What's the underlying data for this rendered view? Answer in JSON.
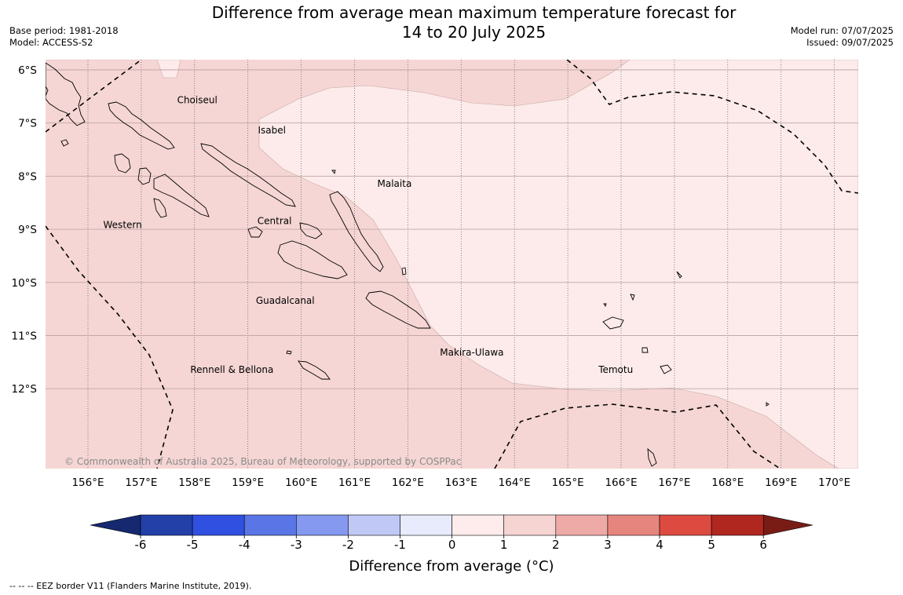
{
  "title_line1": "Difference from average mean maximum temperature forecast for",
  "title_line2": "14 to 20 July 2025",
  "base_period": "Base period: 1981-2018",
  "model": "Model: ACCESS-S2",
  "model_run": "Model run: 07/07/2025",
  "issued": "Issued: 09/07/2025",
  "lat_labels": [
    "6°S",
    "7°S",
    "8°S",
    "9°S",
    "10°S",
    "11°S",
    "12°S"
  ],
  "lon_labels": [
    "156°E",
    "157°E",
    "158°E",
    "159°E",
    "160°E",
    "161°E",
    "162°E",
    "163°E",
    "164°E",
    "165°E",
    "166°E",
    "167°E",
    "168°E",
    "169°E",
    "170°E"
  ],
  "regions": [
    {
      "name": "Choiseul",
      "lon": 158.05,
      "lat": -6.63
    },
    {
      "name": "Isabel",
      "lon": 159.45,
      "lat": -7.2
    },
    {
      "name": "Malaita",
      "lon": 161.75,
      "lat": -8.2
    },
    {
      "name": "Central",
      "lon": 159.5,
      "lat": -8.9
    },
    {
      "name": "Western",
      "lon": 156.65,
      "lat": -8.98
    },
    {
      "name": "Guadalcanal",
      "lon": 159.7,
      "lat": -10.4
    },
    {
      "name": "Makira-Ulawa",
      "lon": 163.2,
      "lat": -11.38
    },
    {
      "name": "Temotu",
      "lon": 165.9,
      "lat": -11.7
    },
    {
      "name": "Rennell & Bellona",
      "lon": 158.7,
      "lat": -11.7
    }
  ],
  "colors": {
    "zone_1_2": "#f5d6d4",
    "zone_0_1": "#fcebea",
    "land_outline": "#000000"
  },
  "copyright": "© Commonwealth of Australia 2025, Bureau of Meteorology, supported by COSPPac",
  "legend": {
    "title": "Difference from average (°C)",
    "ticks": [
      "-6",
      "-5",
      "-4",
      "-3",
      "-2",
      "-1",
      "0",
      "1",
      "2",
      "3",
      "4",
      "5",
      "6"
    ],
    "bins": [
      "#2340a8",
      "#2f50e0",
      "#5a76e6",
      "#8499ef",
      "#c0c8f5",
      "#e8ebfb",
      "#fdeceb",
      "#f5d4d2",
      "#eeaaa7",
      "#e6857e",
      "#dd4b40",
      "#b0271f"
    ],
    "under_color": "#152870",
    "over_color": "#7a1c16"
  },
  "footnote": "--  --  -- EEZ border V11 (Flanders Marine Institute, 2019)."
}
